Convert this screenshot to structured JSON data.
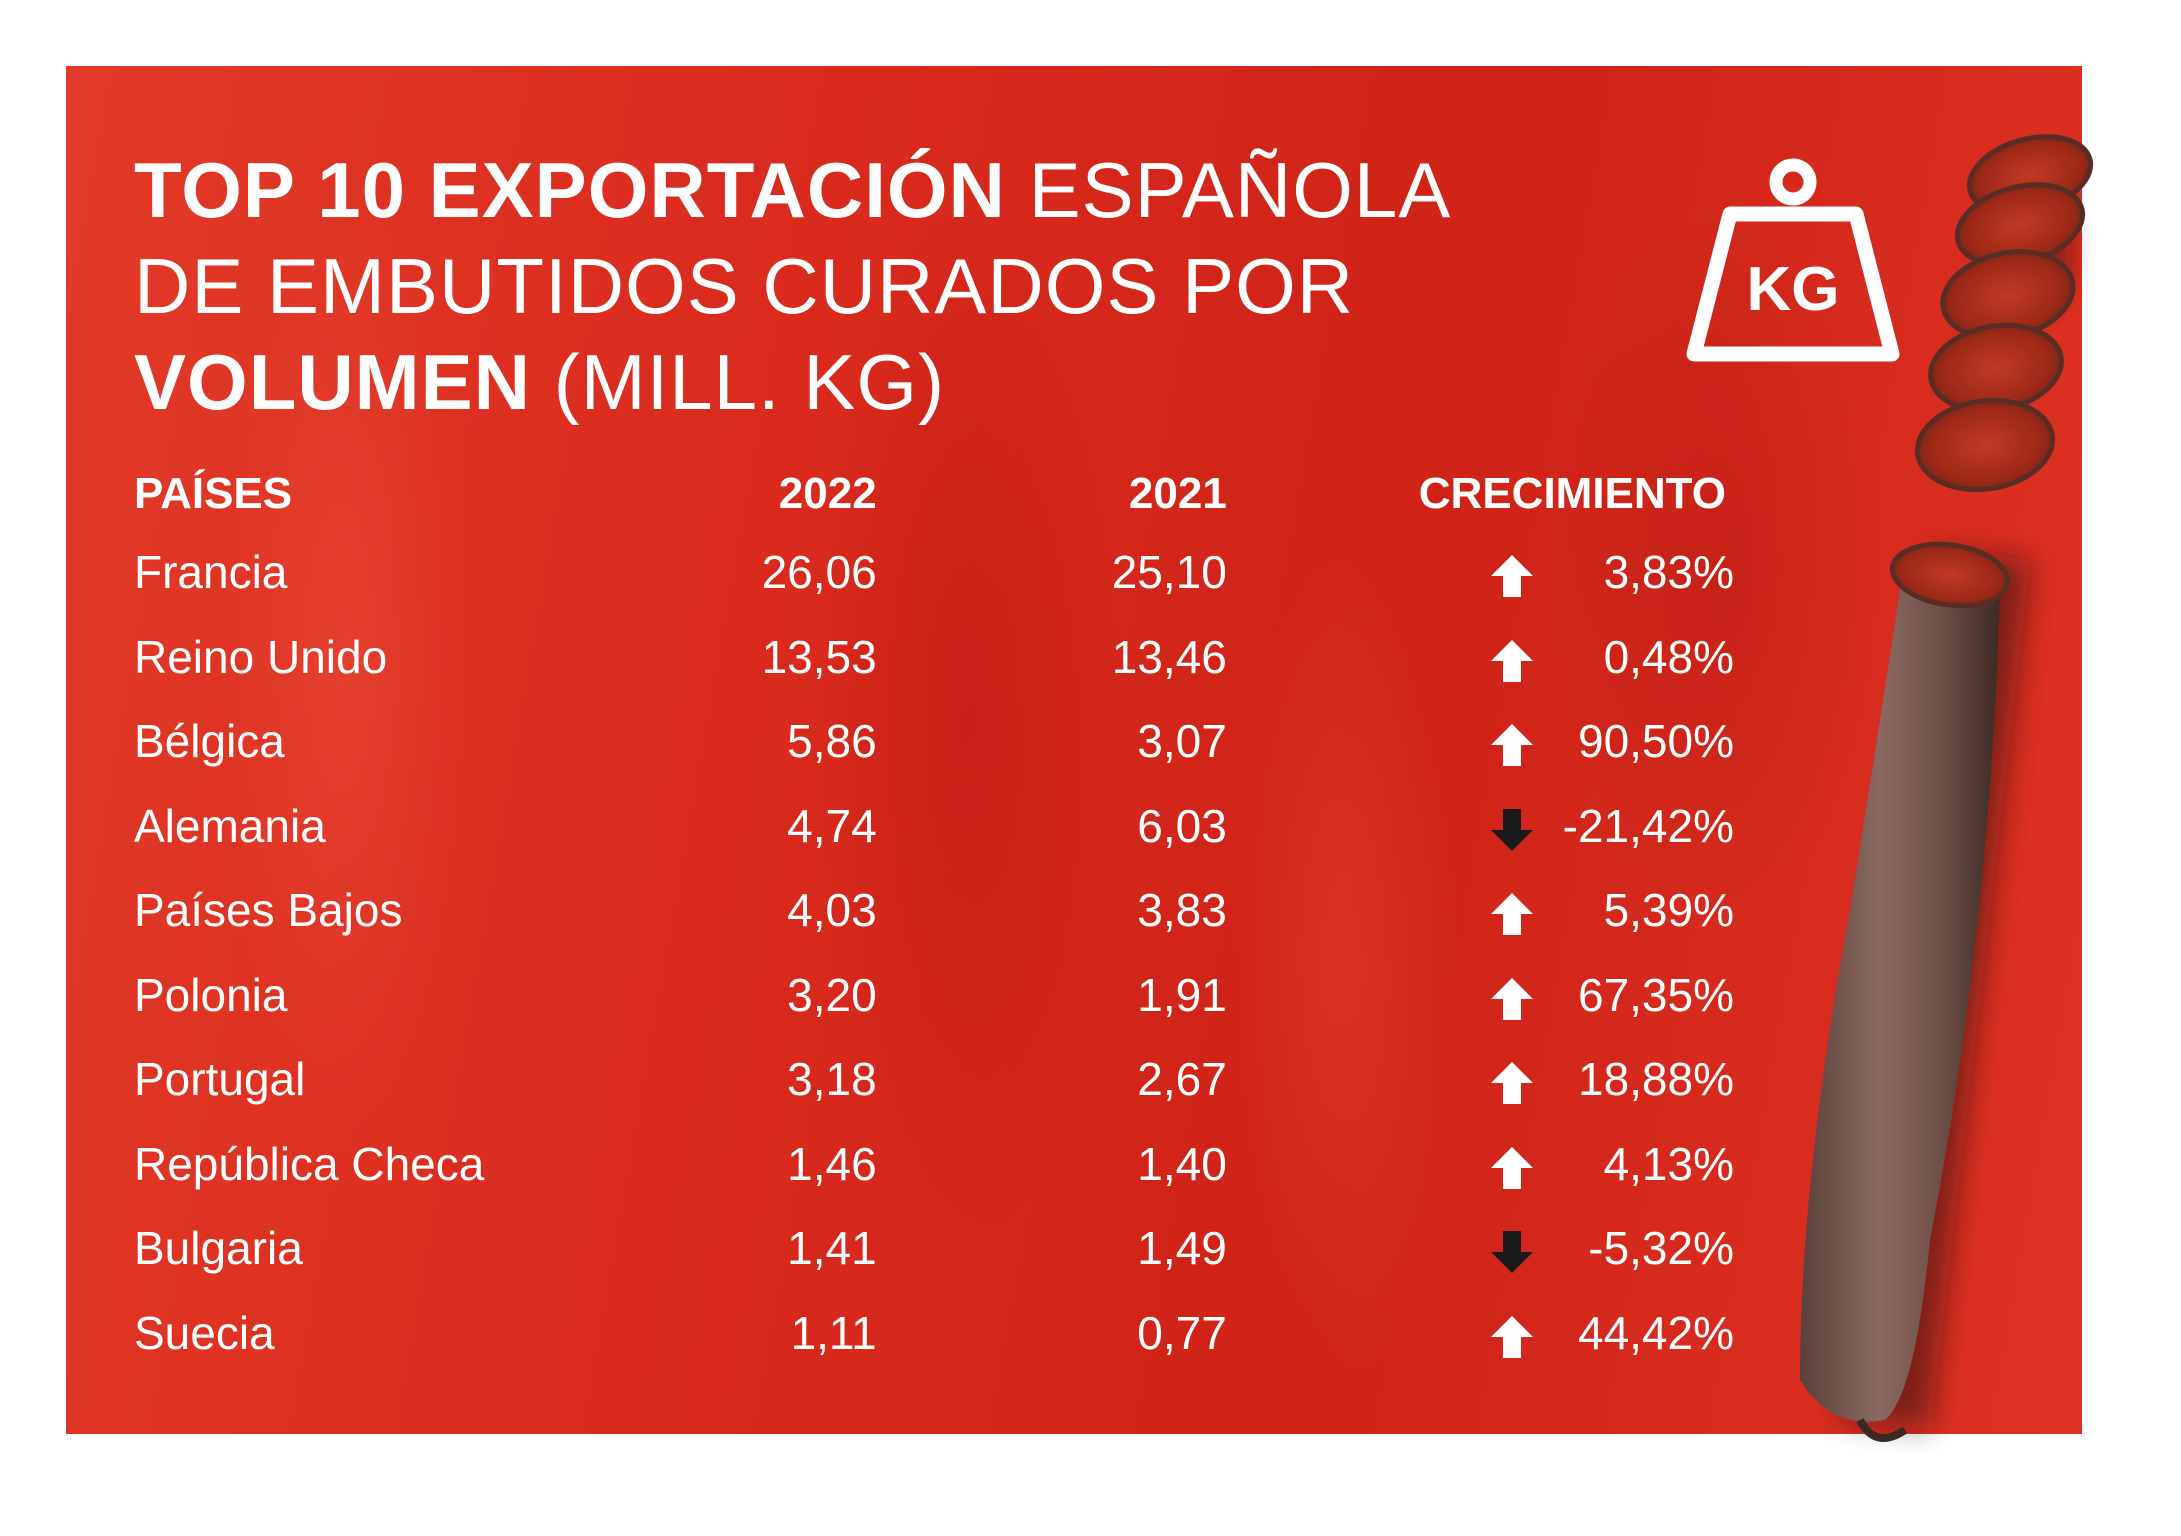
{
  "title": {
    "line1_bold": "TOP 10 EXPORTACIÓN",
    "line1_regular": "ESPAÑOLA",
    "line2_regular": "DE EMBUTIDOS CURADOS POR",
    "line3_bold": "VOLUMEN",
    "line3_regular": "(MILL. KG)"
  },
  "icon": {
    "name": "weight-kg-icon",
    "label": "KG"
  },
  "colors": {
    "background": "#d92a1d",
    "text": "#ffffff",
    "arrow_up": "#ffffff",
    "arrow_down": "#1a1a1a"
  },
  "chart_data": {
    "type": "table",
    "columns": [
      "PAÍSES",
      "2022",
      "2021",
      "CRECIMIENTO"
    ],
    "rows": [
      {
        "country": "Francia",
        "y2022": "26,06",
        "y2021": "25,10",
        "trend": "up",
        "growth": "3,83%"
      },
      {
        "country": "Reino Unido",
        "y2022": "13,53",
        "y2021": "13,46",
        "trend": "up",
        "growth": "0,48%"
      },
      {
        "country": "Bélgica",
        "y2022": "5,86",
        "y2021": "3,07",
        "trend": "up",
        "growth": "90,50%"
      },
      {
        "country": "Alemania",
        "y2022": "4,74",
        "y2021": "6,03",
        "trend": "down",
        "growth": "-21,42%"
      },
      {
        "country": "Países Bajos",
        "y2022": "4,03",
        "y2021": "3,83",
        "trend": "up",
        "growth": "5,39%"
      },
      {
        "country": "Polonia",
        "y2022": "3,20",
        "y2021": "1,91",
        "trend": "up",
        "growth": "67,35%"
      },
      {
        "country": "Portugal",
        "y2022": "3,18",
        "y2021": "2,67",
        "trend": "up",
        "growth": "18,88%"
      },
      {
        "country": "República Checa",
        "y2022": "1,46",
        "y2021": "1,40",
        "trend": "up",
        "growth": "4,13%"
      },
      {
        "country": "Bulgaria",
        "y2022": "1,41",
        "y2021": "1,49",
        "trend": "down",
        "growth": "-5,32%"
      },
      {
        "country": "Suecia",
        "y2022": "1,11",
        "y2021": "0,77",
        "trend": "up",
        "growth": "44,42%"
      }
    ]
  }
}
